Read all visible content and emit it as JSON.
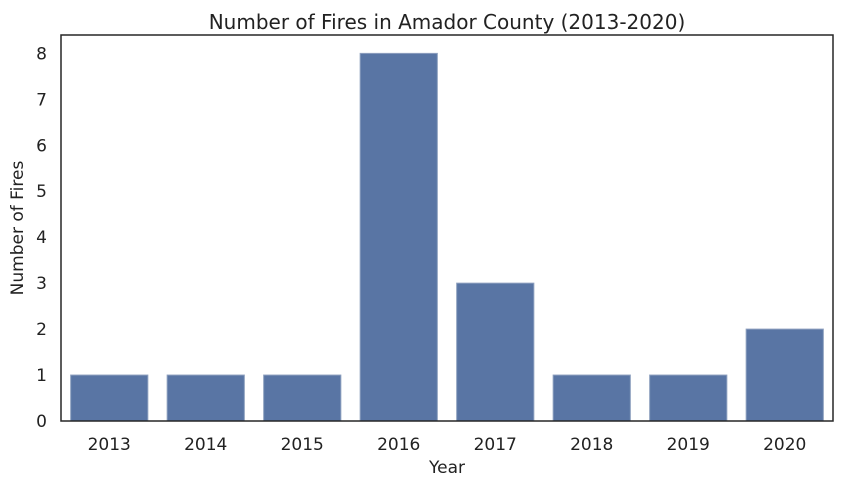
{
  "chart_data": {
    "type": "bar",
    "title": "Number of Fires in Amador County (2013-2020)",
    "xlabel": "Year",
    "ylabel": "Number of Fires",
    "categories": [
      "2013",
      "2014",
      "2015",
      "2016",
      "2017",
      "2018",
      "2019",
      "2020"
    ],
    "values": [
      1,
      1,
      1,
      8,
      3,
      1,
      1,
      2
    ],
    "ylim": [
      0,
      8.4
    ],
    "yticks": [
      0,
      1,
      2,
      3,
      4,
      5,
      6,
      7,
      8
    ],
    "grid": false,
    "bar_color": "#5975a4",
    "bar_edge_color": "#8ea0bf",
    "axes_color": "#262626"
  }
}
